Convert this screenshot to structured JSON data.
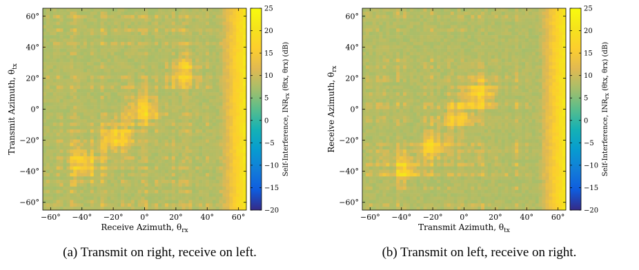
{
  "chart_data": [
    {
      "type": "heatmap",
      "caption": "(a) Transmit on right, receive on left.",
      "xlabel": "Receive Azimuth, θ",
      "xlabel_sub": "rx",
      "ylabel": "Transmit Azimuth, θ",
      "ylabel_sub": "tx",
      "xlim": [
        -65,
        65
      ],
      "ylim": [
        -65,
        65
      ],
      "x_ticks": [
        -60,
        -40,
        -20,
        0,
        20,
        40,
        60
      ],
      "x_tick_labels": [
        "−60°",
        "−40°",
        "−20°",
        "0°",
        "20°",
        "40°",
        "60°"
      ],
      "y_ticks": [
        -60,
        -40,
        -20,
        0,
        20,
        40,
        60
      ],
      "y_tick_labels": [
        "−60°",
        "−40°",
        "−20°",
        "0°",
        "20°",
        "40°",
        "60°"
      ],
      "colorbar": {
        "label": "Self-Interference, INR",
        "label_sub": "rx",
        "label_args": " (θtx, θrx) (dB)",
        "range": [
          -20,
          25
        ],
        "ticks": [
          25,
          20,
          15,
          10,
          5,
          0,
          -5,
          -10,
          -15,
          -20
        ],
        "tick_labels": [
          "25",
          "20",
          "15",
          "10",
          "5",
          "0",
          "−5",
          "−10",
          "−15",
          "−20"
        ],
        "colormap": "parula"
      },
      "grid": false,
      "hotspots": [
        {
          "x": 0,
          "y": 0,
          "value": 17
        },
        {
          "x": -18,
          "y": -18,
          "value": 17
        },
        {
          "x": -38,
          "y": -35,
          "value": 17
        },
        {
          "x": 25,
          "y": 25,
          "value": 16
        },
        {
          "x": 58,
          "y": 0,
          "value": 20
        }
      ]
    },
    {
      "type": "heatmap",
      "caption": "(b) Transmit on left, receive on right.",
      "xlabel": "Transmit Azimuth, θ",
      "xlabel_sub": "tx",
      "ylabel": "Receive Azimuth, θ",
      "ylabel_sub": "rx",
      "xlim": [
        -65,
        65
      ],
      "ylim": [
        -65,
        65
      ],
      "x_ticks": [
        -60,
        -40,
        -20,
        0,
        20,
        40,
        60
      ],
      "x_tick_labels": [
        "−60°",
        "−40°",
        "−20°",
        "0°",
        "20°",
        "40°",
        "60°"
      ],
      "y_ticks": [
        -60,
        -40,
        -20,
        0,
        20,
        40,
        60
      ],
      "y_tick_labels": [
        "−60°",
        "−40°",
        "−20°",
        "0°",
        "20°",
        "40°",
        "60°"
      ],
      "colorbar": {
        "label": "Self-Interference, INR",
        "label_sub": "rx",
        "label_args": " (θtx, θrx) (dB)",
        "range": [
          -20,
          25
        ],
        "ticks": [
          25,
          20,
          15,
          10,
          5,
          0,
          -5,
          -10,
          -15,
          -20
        ],
        "tick_labels": [
          "25",
          "20",
          "15",
          "10",
          "5",
          "0",
          "−5",
          "−10",
          "−15",
          "−20"
        ],
        "colormap": "parula"
      },
      "grid": false,
      "hotspots": [
        {
          "x": 10,
          "y": 10,
          "value": 17
        },
        {
          "x": -5,
          "y": -5,
          "value": 15
        },
        {
          "x": -20,
          "y": -22,
          "value": 16
        },
        {
          "x": -38,
          "y": -40,
          "value": 17
        },
        {
          "x": 55,
          "y": 0,
          "value": 20
        }
      ]
    }
  ]
}
